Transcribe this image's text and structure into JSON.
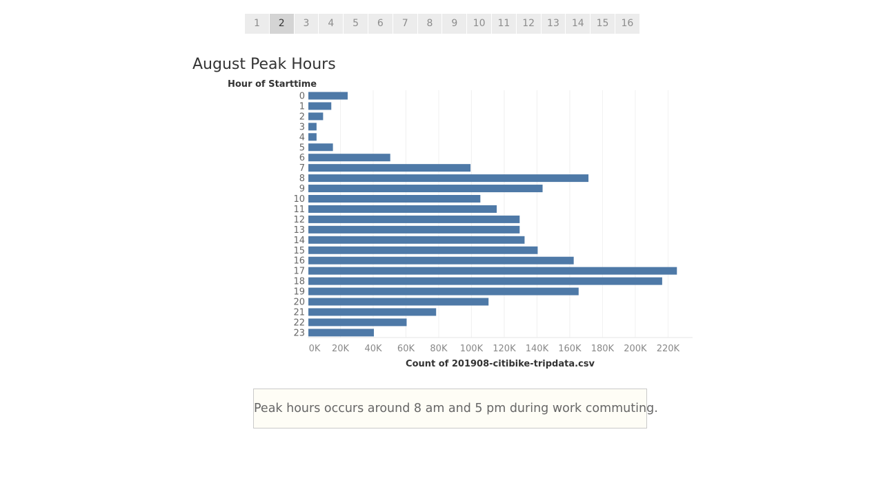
{
  "pager": {
    "pages": [
      "1",
      "2",
      "3",
      "4",
      "5",
      "6",
      "7",
      "8",
      "9",
      "10",
      "11",
      "12",
      "13",
      "14",
      "15",
      "16"
    ],
    "active": "2"
  },
  "chart_title": "August Peak Hours",
  "colors": {
    "bar": "#4e79a7",
    "axis_text": "#888888",
    "grid": "#f0f0f0"
  },
  "chart_data": {
    "type": "bar",
    "orientation": "horizontal",
    "title": "August Peak Hours",
    "ylabel": "Hour of Starttime",
    "xlabel": "Count of 201908-citibike-tripdata.csv",
    "categories": [
      "0",
      "1",
      "2",
      "3",
      "4",
      "5",
      "6",
      "7",
      "8",
      "9",
      "10",
      "11",
      "12",
      "13",
      "14",
      "15",
      "16",
      "17",
      "18",
      "19",
      "20",
      "21",
      "22",
      "23"
    ],
    "values": [
      24000,
      14000,
      9000,
      5000,
      5000,
      15000,
      50000,
      99000,
      171000,
      143000,
      105000,
      115000,
      129000,
      129000,
      132000,
      140000,
      162000,
      225000,
      216000,
      165000,
      110000,
      78000,
      60000,
      40000
    ],
    "xlim": [
      0,
      235000
    ],
    "xticks": [
      0,
      20000,
      40000,
      60000,
      80000,
      100000,
      120000,
      140000,
      160000,
      180000,
      200000,
      220000
    ],
    "xtick_labels": [
      "0K",
      "20K",
      "40K",
      "60K",
      "80K",
      "100K",
      "120K",
      "140K",
      "160K",
      "180K",
      "200K",
      "220K"
    ],
    "grid": true
  },
  "note": "Peak hours occurs around 8 am and 5 pm during work commuting."
}
